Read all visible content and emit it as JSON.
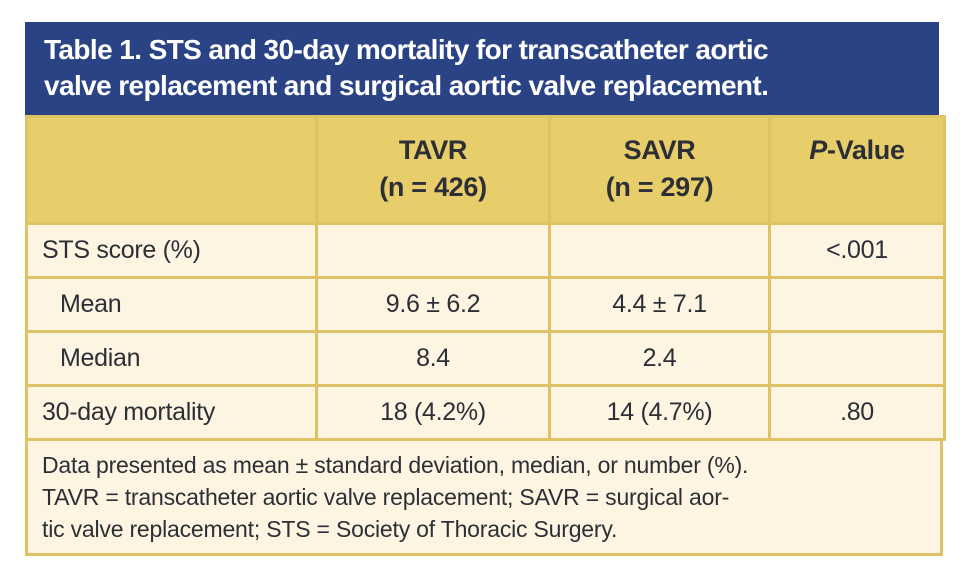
{
  "title": {
    "lines": [
      "Table 1. STS and 30-day mortality for transcatheter aortic",
      "valve replacement and surgical aortic valve replacement."
    ]
  },
  "table": {
    "header": {
      "tavr": {
        "name": "TAVR",
        "n": "(n = 426)"
      },
      "savr": {
        "name": "SAVR",
        "n": "(n = 297)"
      },
      "pvalue": {
        "italic": "P",
        "rest": "-Value"
      }
    },
    "rows": [
      {
        "label": "STS score (%)",
        "tavr": "",
        "savr": "",
        "p": "<.001"
      },
      {
        "label": "Mean",
        "tavr": "9.6 ± 6.2",
        "savr": "4.4 ± 7.1",
        "p": ""
      },
      {
        "label": "Median",
        "tavr": "8.4",
        "savr": "2.4",
        "p": ""
      },
      {
        "label": "30-day mortality",
        "tavr": "18 (4.2%)",
        "savr": "14 (4.7%)",
        "p": ".80"
      }
    ]
  },
  "footnote": {
    "lines": [
      "Data presented as mean ± standard deviation, median, or number (%).",
      "TAVR = transcatheter aortic valve replacement; SAVR = surgical aor-",
      "tic valve replacement; STS = Society of Thoracic Surgery."
    ]
  },
  "colors": {
    "title_bar": "#2a4385",
    "title_text": "#ffffff",
    "header_row": "#e7ce6a",
    "body_bg": "#fdf4e2",
    "grid_border": "#ddc266",
    "text": "#2d2f36"
  }
}
